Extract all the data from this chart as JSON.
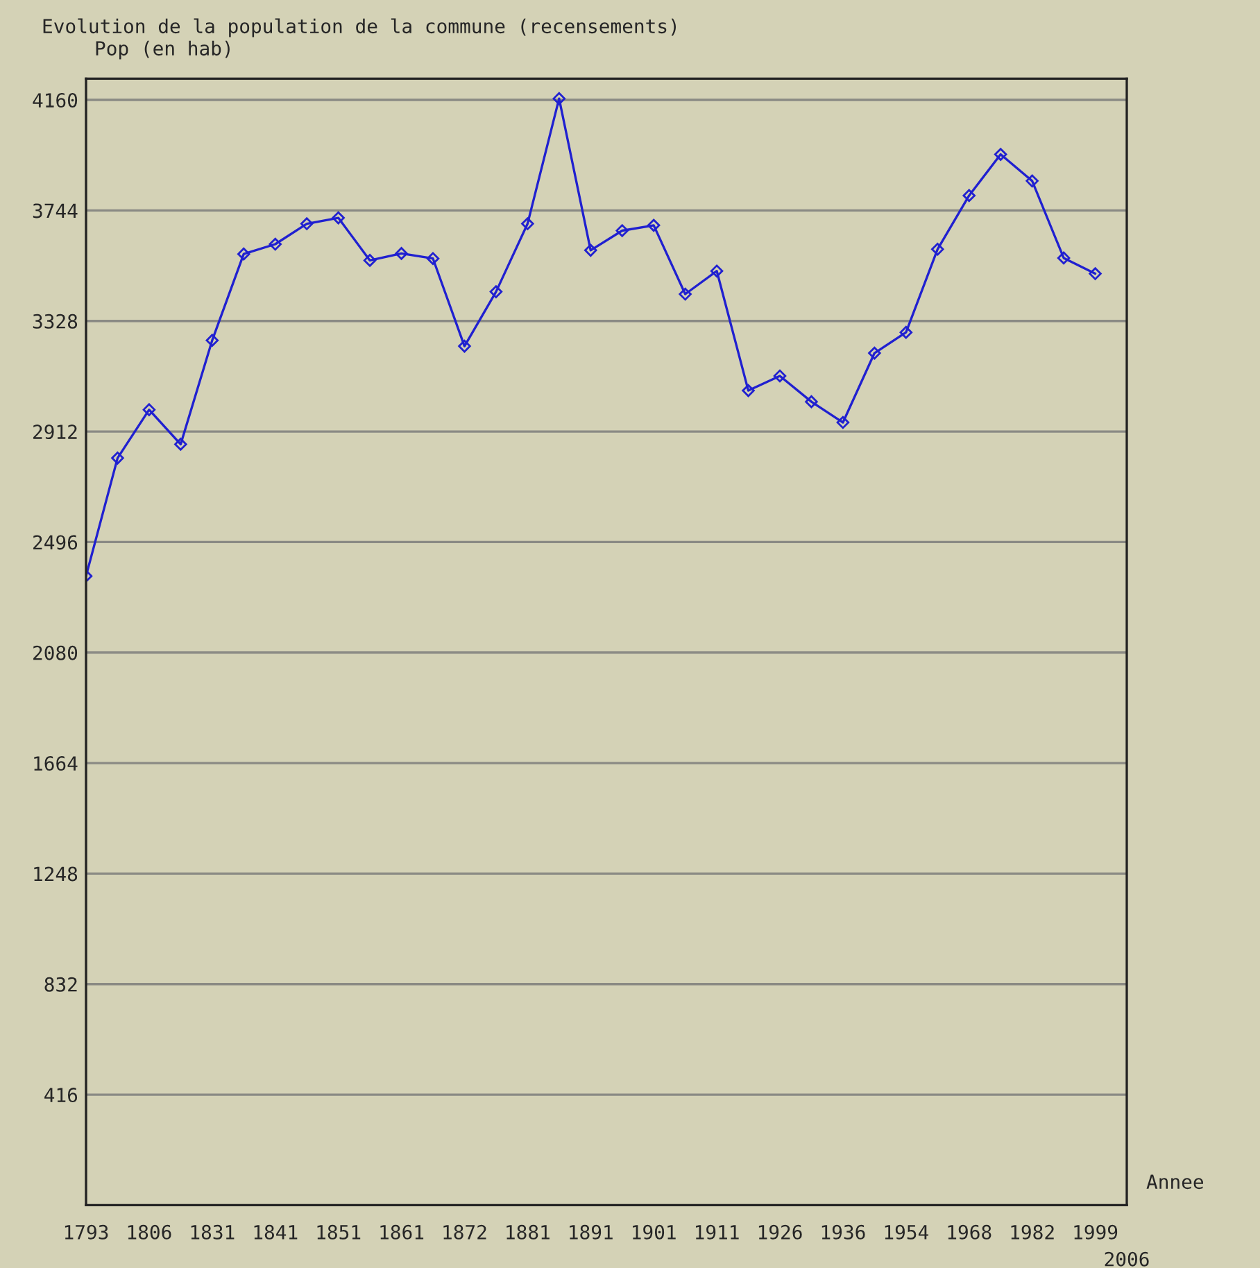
{
  "chart_data": {
    "type": "line",
    "title": "Evolution de la population de la commune (recensements)",
    "ylabel": "Pop (en hab)",
    "xlabel": "Annee",
    "categories": [
      "1793",
      null,
      "1806",
      null,
      "1831",
      null,
      "1841",
      null,
      "1851",
      null,
      "1861",
      null,
      "1872",
      null,
      "1881",
      null,
      "1891",
      null,
      "1901",
      null,
      "1911",
      null,
      "1926",
      null,
      "1936",
      null,
      "1954",
      null,
      "1968",
      null,
      "1982",
      null,
      "1999",
      "2006"
    ],
    "series": [
      {
        "color": "#2020d0",
        "values": [
          2368,
          2812,
          2994,
          2864,
          3255,
          3580,
          3617,
          3694,
          3716,
          3556,
          3582,
          3563,
          3233,
          3438,
          3694,
          4165,
          3594,
          3668,
          3688,
          3429,
          3516,
          3066,
          3121,
          3024,
          2946,
          3207,
          3285,
          3598,
          3800,
          3955,
          3855,
          3565,
          3506,
          null
        ]
      }
    ],
    "ylim": [
      0,
      4240
    ],
    "yticks": [
      416,
      832,
      1248,
      1664,
      2080,
      2496,
      2912,
      3328,
      3744,
      4160
    ],
    "grid": "y",
    "marker": "diamond",
    "line_style": "solid",
    "legend": false
  }
}
